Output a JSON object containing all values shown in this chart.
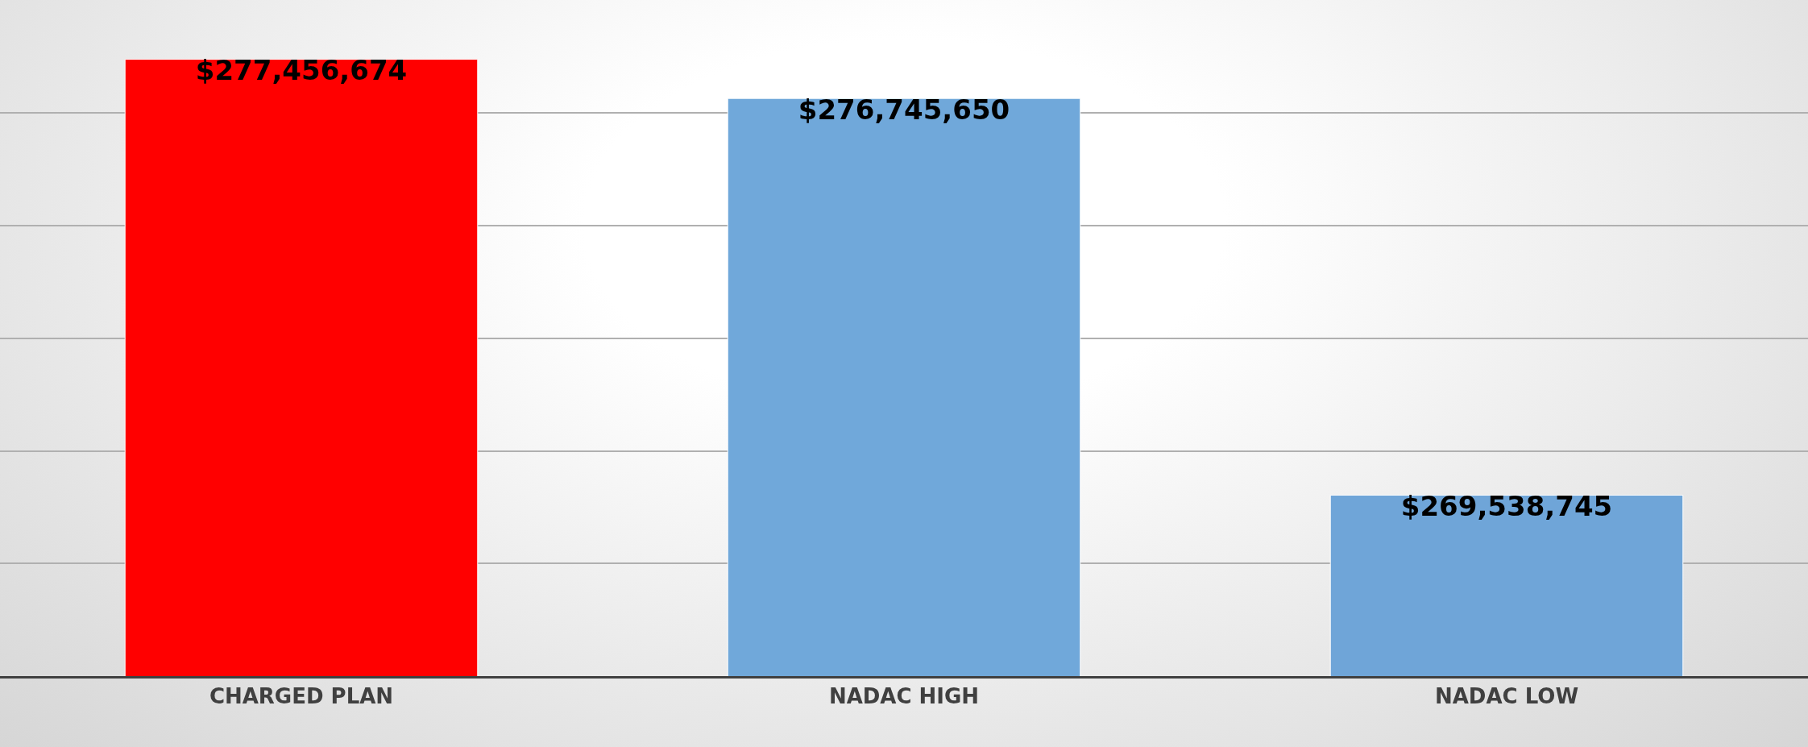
{
  "chart_data": {
    "type": "bar",
    "categories": [
      "CHARGED PLAN",
      "NADAC HIGH",
      "NADAC LOW"
    ],
    "values": [
      277456674,
      276745650,
      269538745
    ],
    "colors": [
      "#ff0000",
      "#70a8da",
      "#6fa5d8"
    ],
    "value_labels": [
      "$277,456,674",
      "$276,745,650",
      "$269,538,745"
    ],
    "grid": "y",
    "tick_labels": "x",
    "legend": false
  }
}
